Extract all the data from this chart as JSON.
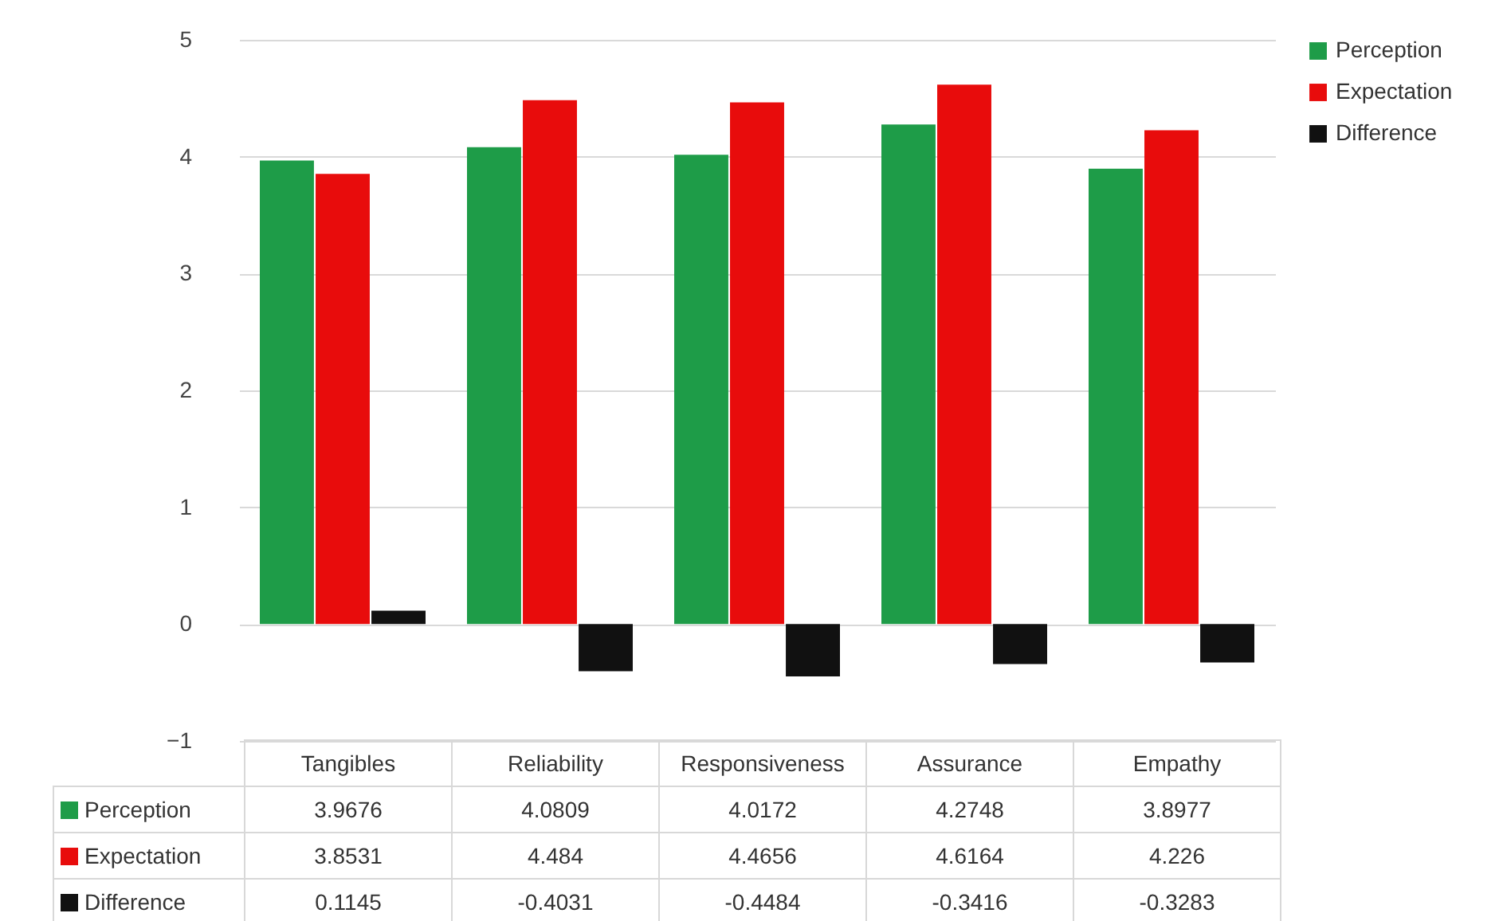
{
  "chart_data": {
    "type": "bar",
    "categories": [
      "Tangibles",
      "Reliability",
      "Responsiveness",
      "Assurance",
      "Empathy"
    ],
    "series": [
      {
        "name": "Perception",
        "color": "#1e9c48",
        "values": [
          3.9676,
          4.0809,
          4.0172,
          4.2748,
          3.8977
        ]
      },
      {
        "name": "Expectation",
        "color": "#e80c0c",
        "values": [
          3.8531,
          4.484,
          4.4656,
          4.6164,
          4.226
        ]
      },
      {
        "name": "Difference",
        "color": "#111111",
        "values": [
          0.1145,
          -0.4031,
          -0.4484,
          -0.3416,
          -0.3283
        ]
      }
    ],
    "ylim": [
      -1,
      5
    ],
    "yticks": [
      -1,
      0,
      1,
      2,
      3,
      4,
      5
    ],
    "grid": "y",
    "legend": "right",
    "data_labels": true
  }
}
